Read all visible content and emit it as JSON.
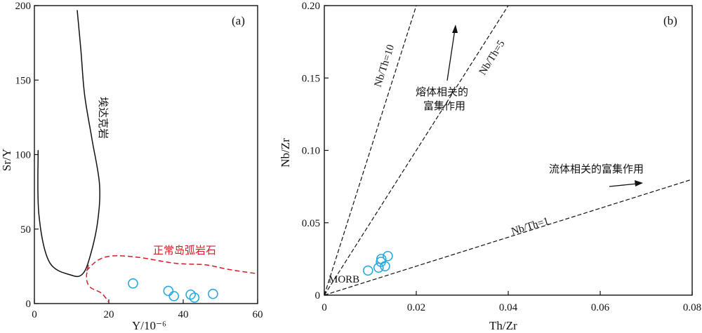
{
  "chart_data": [
    {
      "type": "scatter",
      "panel_label": "(a)",
      "xlabel": "Y/10⁻⁶",
      "ylabel": "Sr/Y",
      "xlim": [
        0,
        60
      ],
      "ylim": [
        0,
        200
      ],
      "xticks": [
        "0",
        "20",
        "40",
        "60"
      ],
      "yticks": [
        "0",
        "50",
        "100",
        "150",
        "200"
      ],
      "points": [
        {
          "x": 26.5,
          "y": 13.5
        },
        {
          "x": 36.0,
          "y": 8.5
        },
        {
          "x": 37.5,
          "y": 5.0
        },
        {
          "x": 42.0,
          "y": 6.0
        },
        {
          "x": 43.0,
          "y": 4.0
        },
        {
          "x": 48.0,
          "y": 6.5
        }
      ],
      "fields": [
        {
          "label": "埃达克岩",
          "style": "solid",
          "color": "#111111",
          "path": [
            [
              11.5,
              197
            ],
            [
              12.5,
              170
            ],
            [
              13.5,
              140
            ],
            [
              15.5,
              110
            ],
            [
              17.5,
              80
            ],
            [
              17.0,
              55
            ],
            [
              15.0,
              32
            ],
            [
              13.0,
              20
            ],
            [
              10.0,
              19
            ],
            [
              4.0,
              28
            ],
            [
              1.2,
              60
            ],
            [
              1.0,
              103
            ]
          ]
        },
        {
          "label": "正常岛弧岩石",
          "style": "dashed",
          "color": "#d11f2a",
          "path": [
            [
              14.0,
              22
            ],
            [
              17.0,
              29
            ],
            [
              21.0,
              32
            ],
            [
              28.0,
              31
            ],
            [
              38.0,
              27
            ],
            [
              46.0,
              26
            ],
            [
              52.0,
              23
            ],
            [
              60.0,
              20
            ]
          ],
          "path2": [
            [
              14.5,
              26
            ],
            [
              14.0,
              17
            ],
            [
              15.0,
              11
            ],
            [
              18.0,
              7
            ],
            [
              20.0,
              1
            ]
          ]
        }
      ]
    },
    {
      "type": "scatter",
      "panel_label": "(b)",
      "xlabel": "Th/Zr",
      "ylabel": "Nb/Zr",
      "xlim": [
        0,
        0.08
      ],
      "ylim": [
        0,
        0.2
      ],
      "xticks": [
        "0",
        "0.02",
        "0.04",
        "0.06",
        "0.08"
      ],
      "yticks": [
        "0",
        "0.05",
        "0.10",
        "0.15",
        "0.20"
      ],
      "points": [
        {
          "x": 0.0095,
          "y": 0.017
        },
        {
          "x": 0.0118,
          "y": 0.019
        },
        {
          "x": 0.0124,
          "y": 0.025
        },
        {
          "x": 0.0132,
          "y": 0.02
        },
        {
          "x": 0.0138,
          "y": 0.027
        },
        {
          "x": 0.0123,
          "y": 0.023
        }
      ],
      "reference_lines": [
        {
          "label": "Nb/Th=10",
          "slope": 10
        },
        {
          "label": "Nb/Th=5",
          "slope": 5
        },
        {
          "label": "Nb/Th=1",
          "slope": 1
        }
      ],
      "annotations": [
        {
          "text_line1": "熔体相关的",
          "text_line2": "富集作用"
        },
        {
          "text": "流体相关的富集作用"
        },
        {
          "text": "MORB"
        }
      ]
    }
  ]
}
